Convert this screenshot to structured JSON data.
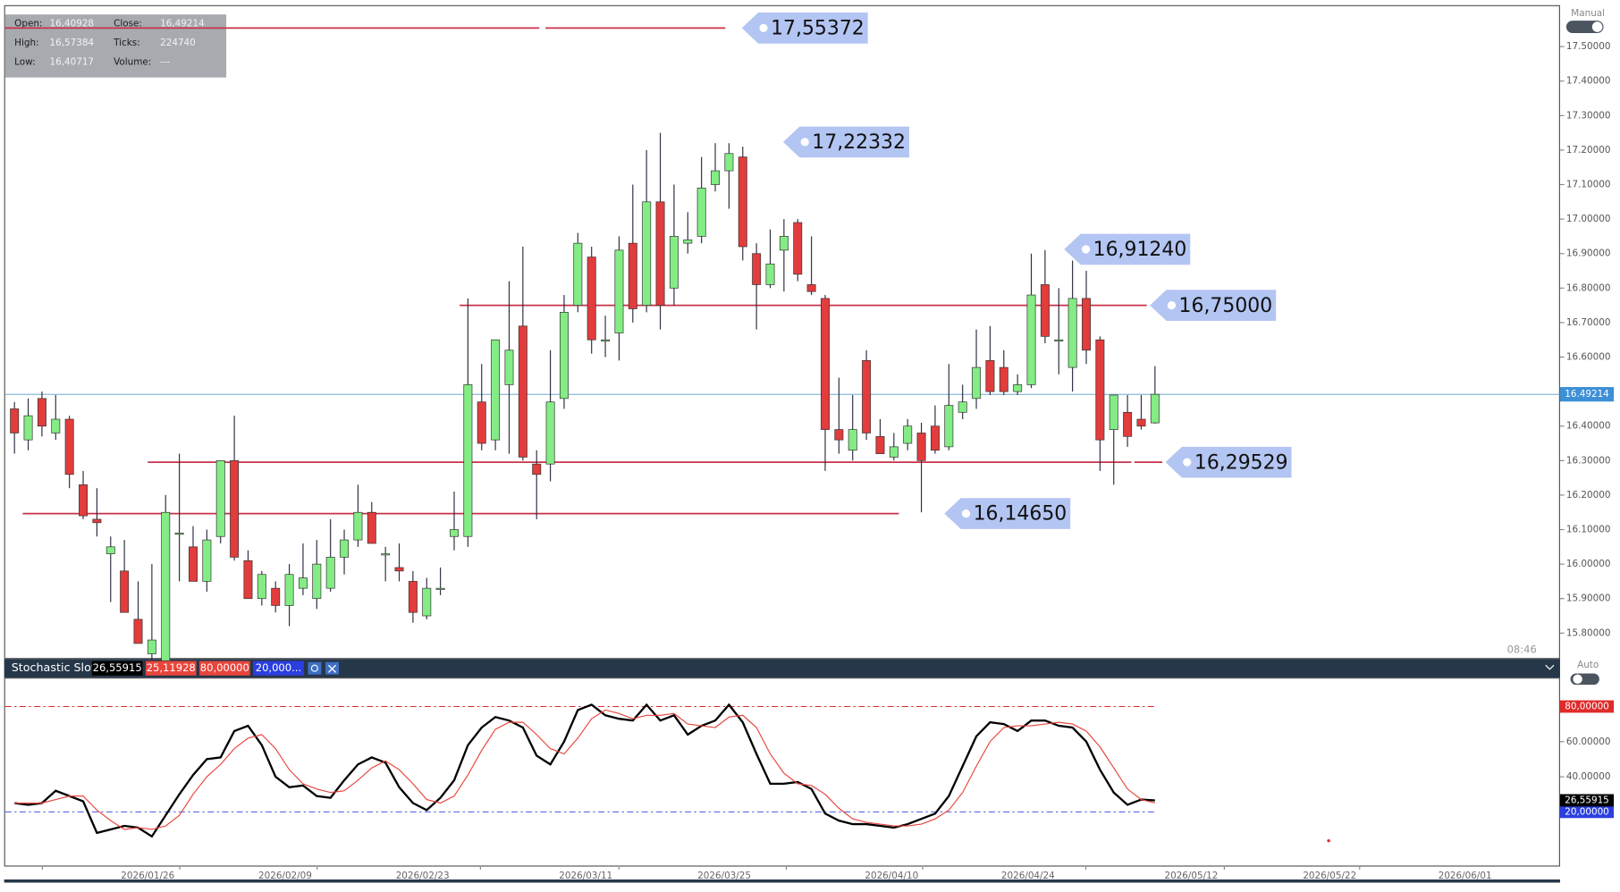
{
  "chart_data": [
    {
      "type": "candlestick",
      "mode": "Manual",
      "info": [
        [
          "Open:",
          "16,40928",
          "Close:",
          "16,49214"
        ],
        [
          "High:",
          "16,57384",
          "Ticks:",
          "224740"
        ],
        [
          "Low:",
          "16,40717",
          "Volume:",
          "---"
        ]
      ],
      "time": "08:46",
      "colors": {
        "up": "#84ec84",
        "down": "#e23c3c",
        "level": "#c8324a",
        "last": "#3d8fd6"
      },
      "ylim": [
        15.728,
        17.62
      ],
      "yticks": [
        {
          "value": 17.5,
          "label": "17.50000"
        },
        {
          "value": 17.4,
          "label": "17.40000"
        },
        {
          "value": 17.3,
          "label": "17.30000"
        },
        {
          "value": 17.2,
          "label": "17.20000"
        },
        {
          "value": 17.1,
          "label": "17.10000"
        },
        {
          "value": 17.0,
          "label": "17.00000"
        },
        {
          "value": 16.9,
          "label": "16.90000"
        },
        {
          "value": 16.8,
          "label": "16.80000"
        },
        {
          "value": 16.7,
          "label": "16.70000"
        },
        {
          "value": 16.6,
          "label": "16.60000"
        },
        {
          "value": 16.5,
          "label": "16.50000"
        },
        {
          "value": 16.4,
          "label": "16.40000"
        },
        {
          "value": 16.3,
          "label": "16.30000"
        },
        {
          "value": 16.2,
          "label": "16.20000"
        },
        {
          "value": 16.1,
          "label": "16.10000"
        },
        {
          "value": 16.0,
          "label": "16.00000"
        },
        {
          "value": 15.9,
          "label": "15.90000"
        },
        {
          "value": 15.8,
          "label": "15.80000"
        }
      ],
      "last_price": {
        "value": 16.49214,
        "label": "16.49214"
      },
      "levels": [
        {
          "value": 17.55372,
          "label": "17,55372"
        },
        {
          "value": 17.22332,
          "label": "17,22332"
        },
        {
          "value": 16.9124,
          "label": "16,91240"
        },
        {
          "value": 16.75,
          "label": "16,75000"
        },
        {
          "value": 16.29529,
          "label": "16,29529"
        },
        {
          "value": 16.1465,
          "label": "16,14650"
        }
      ],
      "candles": [
        [
          16.45,
          16.47,
          16.32,
          16.38
        ],
        [
          16.36,
          16.48,
          16.33,
          16.43
        ],
        [
          16.48,
          16.5,
          16.37,
          16.4
        ],
        [
          16.38,
          16.49,
          16.36,
          16.42
        ],
        [
          16.42,
          16.43,
          16.22,
          16.26
        ],
        [
          16.23,
          16.27,
          16.13,
          16.14
        ],
        [
          16.13,
          16.22,
          16.08,
          16.12
        ],
        [
          16.03,
          16.08,
          15.89,
          16.05
        ],
        [
          15.98,
          16.07,
          15.86,
          15.86
        ],
        [
          15.84,
          15.95,
          15.77,
          15.77
        ],
        [
          15.74,
          16.0,
          15.72,
          15.78
        ],
        [
          15.72,
          16.2,
          15.71,
          16.15
        ],
        [
          16.09,
          16.32,
          15.95,
          16.09
        ],
        [
          16.05,
          16.11,
          15.95,
          15.95
        ],
        [
          15.95,
          16.1,
          15.92,
          16.07
        ],
        [
          16.08,
          16.3,
          16.06,
          16.3
        ],
        [
          16.3,
          16.43,
          16.01,
          16.02
        ],
        [
          16.01,
          16.04,
          15.9,
          15.9
        ],
        [
          15.9,
          15.98,
          15.88,
          15.97
        ],
        [
          15.93,
          15.95,
          15.86,
          15.88
        ],
        [
          15.88,
          16.0,
          15.82,
          15.97
        ],
        [
          15.93,
          16.06,
          15.91,
          15.96
        ],
        [
          15.9,
          16.07,
          15.87,
          16.0
        ],
        [
          15.93,
          16.13,
          15.92,
          16.02
        ],
        [
          16.02,
          16.1,
          15.97,
          16.07
        ],
        [
          16.07,
          16.23,
          16.05,
          16.15
        ],
        [
          16.15,
          16.18,
          16.06,
          16.06
        ],
        [
          16.03,
          16.05,
          15.95,
          16.03
        ],
        [
          15.99,
          16.06,
          15.95,
          15.98
        ],
        [
          15.95,
          15.98,
          15.83,
          15.86
        ],
        [
          15.85,
          15.96,
          15.84,
          15.93
        ],
        [
          15.93,
          15.99,
          15.91,
          15.93
        ],
        [
          16.08,
          16.21,
          16.04,
          16.1
        ],
        [
          16.08,
          16.77,
          16.05,
          16.52
        ],
        [
          16.47,
          16.58,
          16.33,
          16.35
        ],
        [
          16.36,
          16.65,
          16.33,
          16.65
        ],
        [
          16.52,
          16.82,
          16.32,
          16.62
        ],
        [
          16.69,
          16.92,
          16.3,
          16.31
        ],
        [
          16.29,
          16.33,
          16.13,
          16.26
        ],
        [
          16.29,
          16.62,
          16.24,
          16.47
        ],
        [
          16.48,
          16.78,
          16.45,
          16.73
        ],
        [
          16.75,
          16.96,
          16.73,
          16.93
        ],
        [
          16.89,
          16.92,
          16.61,
          16.65
        ],
        [
          16.65,
          16.72,
          16.6,
          16.65
        ],
        [
          16.67,
          16.95,
          16.59,
          16.91
        ],
        [
          16.93,
          17.1,
          16.7,
          16.74
        ],
        [
          16.75,
          17.2,
          16.73,
          17.05
        ],
        [
          17.05,
          17.25,
          16.68,
          16.75
        ],
        [
          16.8,
          17.1,
          16.75,
          16.95
        ],
        [
          16.93,
          17.02,
          16.9,
          16.94
        ],
        [
          16.95,
          17.18,
          16.93,
          17.09
        ],
        [
          17.1,
          17.22,
          17.08,
          17.14
        ],
        [
          17.14,
          17.22,
          17.03,
          17.19
        ],
        [
          17.18,
          17.21,
          16.88,
          16.92
        ],
        [
          16.9,
          16.93,
          16.68,
          16.81
        ],
        [
          16.81,
          16.97,
          16.8,
          16.87
        ],
        [
          16.91,
          17.0,
          16.79,
          16.95
        ],
        [
          16.99,
          17.0,
          16.82,
          16.84
        ],
        [
          16.81,
          16.95,
          16.78,
          16.79
        ],
        [
          16.77,
          16.78,
          16.27,
          16.39
        ],
        [
          16.39,
          16.54,
          16.32,
          16.36
        ],
        [
          16.33,
          16.49,
          16.3,
          16.39
        ],
        [
          16.59,
          16.62,
          16.36,
          16.38
        ],
        [
          16.37,
          16.42,
          16.32,
          16.32
        ],
        [
          16.31,
          16.38,
          16.3,
          16.34
        ],
        [
          16.35,
          16.42,
          16.33,
          16.4
        ],
        [
          16.38,
          16.41,
          16.15,
          16.3
        ],
        [
          16.4,
          16.46,
          16.32,
          16.33
        ],
        [
          16.34,
          16.58,
          16.33,
          16.46
        ],
        [
          16.44,
          16.52,
          16.42,
          16.47
        ],
        [
          16.48,
          16.68,
          16.45,
          16.57
        ],
        [
          16.59,
          16.69,
          16.49,
          16.5
        ],
        [
          16.57,
          16.62,
          16.49,
          16.5
        ],
        [
          16.5,
          16.55,
          16.49,
          16.52
        ],
        [
          16.52,
          16.9,
          16.51,
          16.78
        ],
        [
          16.81,
          16.91,
          16.64,
          16.66
        ],
        [
          16.65,
          16.8,
          16.55,
          16.65
        ],
        [
          16.57,
          16.88,
          16.5,
          16.77
        ],
        [
          16.77,
          16.85,
          16.58,
          16.62
        ],
        [
          16.65,
          16.66,
          16.27,
          16.36
        ],
        [
          16.39,
          16.49,
          16.23,
          16.49
        ],
        [
          16.44,
          16.49,
          16.34,
          16.37
        ],
        [
          16.42,
          16.49,
          16.39,
          16.4
        ],
        [
          16.40928,
          16.57384,
          16.40717,
          16.49214
        ]
      ]
    },
    {
      "type": "line",
      "title": "Stochastic Slow",
      "mode": "Auto",
      "header_values": [
        "26,55915",
        "25,11928",
        "80,00000",
        "20,000..."
      ],
      "ylim": [
        -10.6,
        96.5
      ],
      "yticks": [
        {
          "value": 60,
          "label": "60.00000"
        },
        {
          "value": 40,
          "label": "40.00000"
        }
      ],
      "levels": [
        {
          "value": 80,
          "label": "80,00000",
          "color": "#e02b2b"
        },
        {
          "value": 20,
          "label": "20,00000",
          "color": "#2b3fe0"
        }
      ],
      "xticks": [
        "2026/01/26",
        "2026/02/09",
        "2026/02/23",
        "2026/03/11",
        "2026/03/25",
        "2026/04/10",
        "2026/04/24",
        "2026/05/12",
        "2026/05/22",
        "2026/06/01"
      ],
      "series": [
        {
          "color": "#000000",
          "values": [
            25,
            24,
            25,
            32,
            29,
            26,
            8,
            10,
            12,
            11,
            6,
            18,
            30,
            41,
            50,
            51,
            66,
            69,
            58,
            40,
            34,
            35,
            29,
            28,
            38,
            47,
            51,
            48,
            34,
            25,
            21,
            28,
            38,
            58,
            68,
            74,
            72,
            68,
            52,
            47,
            60,
            78,
            81,
            75,
            73,
            72,
            81,
            72,
            75,
            64,
            69,
            72,
            81,
            71,
            53,
            36,
            36,
            37,
            33,
            19,
            15,
            13,
            13,
            12,
            11,
            13,
            16,
            19,
            29,
            46,
            63,
            71,
            70,
            66,
            72,
            72,
            69,
            68,
            60,
            44,
            31,
            24,
            27,
            26.55915
          ]
        },
        {
          "color": "#e8453c",
          "values": [
            25,
            25,
            25,
            27,
            29,
            29,
            21,
            15,
            10,
            11,
            10,
            12,
            18,
            30,
            40,
            47,
            56,
            62,
            64,
            56,
            44,
            36,
            33,
            31,
            32,
            38,
            45,
            49,
            44,
            36,
            27,
            25,
            29,
            41,
            55,
            67,
            71,
            71,
            64,
            56,
            53,
            62,
            73,
            78,
            76,
            73,
            75,
            75,
            76,
            70,
            69,
            68,
            74,
            75,
            68,
            53,
            42,
            36,
            35,
            30,
            22,
            16,
            14,
            13,
            12,
            12,
            13,
            16,
            21,
            31,
            46,
            60,
            68,
            69,
            69,
            70,
            71,
            70,
            66,
            57,
            45,
            33,
            27,
            25.11928
          ]
        }
      ]
    }
  ]
}
